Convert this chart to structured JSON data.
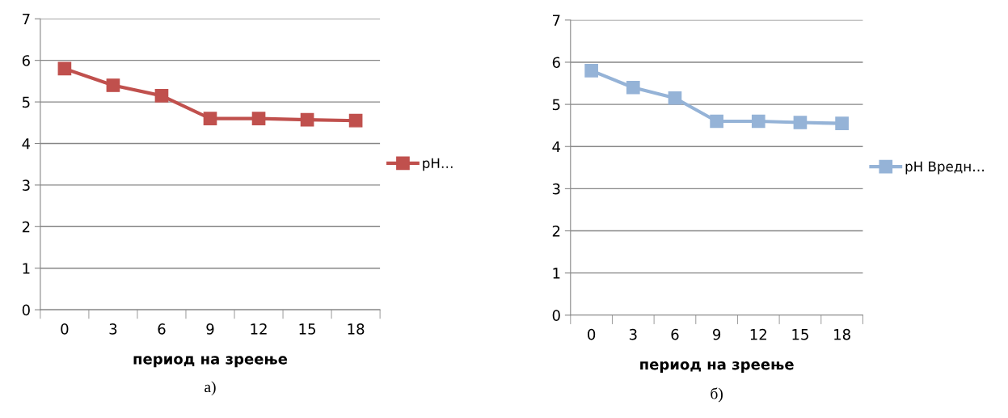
{
  "chart_data": [
    {
      "type": "line",
      "xlabel": "период на зреење",
      "categories": [
        "0",
        "3",
        "6",
        "9",
        "12",
        "15",
        "18"
      ],
      "series": [
        {
          "name": "pH…",
          "color": "#c0504d",
          "values": [
            5.8,
            5.4,
            5.15,
            4.6,
            4.6,
            4.57,
            4.55
          ]
        }
      ],
      "ylim": [
        0,
        7
      ],
      "yticks": [
        0,
        1,
        2,
        3,
        4,
        5,
        6,
        7
      ],
      "grid": "y",
      "legend": "right",
      "marker": "square",
      "line_style": "solid",
      "annotations": [
        "а)"
      ]
    },
    {
      "type": "line",
      "xlabel": "период на зреење",
      "categories": [
        "0",
        "3",
        "6",
        "9",
        "12",
        "15",
        "18"
      ],
      "series": [
        {
          "name": "pH Вредн…",
          "color": "#95b3d7",
          "values": [
            5.8,
            5.4,
            5.15,
            4.6,
            4.6,
            4.57,
            4.55
          ]
        }
      ],
      "ylim": [
        0,
        7
      ],
      "yticks": [
        0,
        1,
        2,
        3,
        4,
        5,
        6,
        7
      ],
      "grid": "y",
      "legend": "right",
      "marker": "square",
      "line_style": "solid",
      "annotations": [
        "б)"
      ]
    }
  ]
}
